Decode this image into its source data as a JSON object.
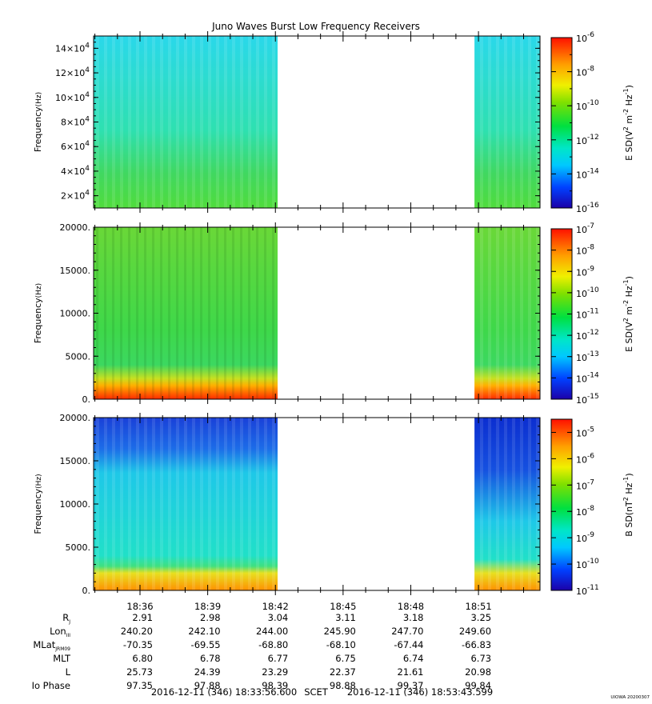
{
  "title": "Juno Waves Burst Low Frequency Receivers",
  "time_ticks": [
    "18:36",
    "18:39",
    "18:42",
    "18:45",
    "18:48",
    "18:51"
  ],
  "chart_data": [
    {
      "type": "heatmap",
      "panel": "top",
      "ylabel": "Frequency (Hz)",
      "yticks": [
        "14×10^4",
        "12×10^4",
        "10×10^4",
        "8×10^4",
        "6×10^4",
        "4×10^4",
        "2×10^4"
      ],
      "yticks_display": [
        {
          "m": "14",
          "e": "4"
        },
        {
          "m": "12",
          "e": "4"
        },
        {
          "m": "10",
          "e": "4"
        },
        {
          "m": "8",
          "e": "4"
        },
        {
          "m": "6",
          "e": "4"
        },
        {
          "m": "4",
          "e": "4"
        },
        {
          "m": "2",
          "e": "4"
        }
      ],
      "ylim": [
        10000,
        150000
      ],
      "colorbar_label": "E SD (V^2 m^-2 Hz^-1)",
      "colorbar_label_parts": {
        "pre": "E SD(V",
        "a": "2",
        "mid": " m",
        "b": "-2",
        "mid2": " Hz",
        "c": "-1",
        "post": ")"
      },
      "colorbar_ticks": [
        "-6",
        "-8",
        "-10",
        "-12",
        "-14",
        "-16"
      ],
      "colorbar_range": [
        -16,
        -6
      ],
      "data_gaps": [
        [
          "18:42",
          "18:51"
        ]
      ]
    },
    {
      "type": "heatmap",
      "panel": "middle",
      "ylabel": "Frequency (Hz)",
      "yticks": [
        "20000.",
        "15000.",
        "10000.",
        "5000.",
        "0."
      ],
      "ylim": [
        0,
        20000
      ],
      "colorbar_label": "E SD (V^2 m^-2 Hz^-1)",
      "colorbar_label_parts": {
        "pre": "E SD(V",
        "a": "2",
        "mid": " m",
        "b": "-2",
        "mid2": " Hz",
        "c": "-1",
        "post": ")"
      },
      "colorbar_ticks": [
        "-7",
        "-8",
        "-9",
        "-10",
        "-11",
        "-12",
        "-13",
        "-14",
        "-15"
      ],
      "colorbar_range": [
        -15,
        -7
      ],
      "data_gaps": [
        [
          "18:42",
          "18:51"
        ]
      ]
    },
    {
      "type": "heatmap",
      "panel": "bottom",
      "ylabel": "Frequency (Hz)",
      "yticks": [
        "20000.",
        "15000.",
        "10000.",
        "5000.",
        "0."
      ],
      "ylim": [
        0,
        20000
      ],
      "colorbar_label": "B SD (nT^2 Hz^-1)",
      "colorbar_label_parts": {
        "pre": "B SD(nT",
        "a": "2",
        "mid": " Hz",
        "b": "-1",
        "mid2": "",
        "c": "",
        "post": ")"
      },
      "colorbar_ticks": [
        "-5",
        "-6",
        "-7",
        "-8",
        "-9",
        "-10",
        "-11"
      ],
      "colorbar_range": [
        -11,
        -4.5
      ],
      "data_gaps": [
        [
          "18:42",
          "18:51"
        ]
      ]
    }
  ],
  "ephemeris": {
    "labels": [
      {
        "main": "R",
        "sub": "J"
      },
      {
        "main": "Lon",
        "sub": "III"
      },
      {
        "main": "MLat",
        "sub": "JRM09"
      },
      {
        "main": "MLT",
        "sub": ""
      },
      {
        "main": "L",
        "sub": ""
      },
      {
        "main": "Io Phase",
        "sub": ""
      }
    ],
    "rows": [
      [
        "2.91",
        "2.98",
        "3.04",
        "3.11",
        "3.18",
        "3.25"
      ],
      [
        "240.20",
        "242.10",
        "244.00",
        "245.90",
        "247.70",
        "249.60"
      ],
      [
        "-70.35",
        "-69.55",
        "-68.80",
        "-68.10",
        "-67.44",
        "-66.83"
      ],
      [
        "6.80",
        "6.78",
        "6.77",
        "6.75",
        "6.74",
        "6.73"
      ],
      [
        "25.73",
        "24.39",
        "23.29",
        "22.37",
        "21.61",
        "20.98"
      ],
      [
        "97.35",
        "97.88",
        "98.39",
        "98.88",
        "99.37",
        "99.84"
      ]
    ]
  },
  "time_range": {
    "start": "2016-12-11 (346) 18:33:56.600",
    "frame": "SCET",
    "end": "2016-12-11 (346) 18:53:43.599"
  },
  "footer_stamp": "UIOWA 20200307",
  "colors": {
    "bg_cyan": "#21d9e0",
    "green": "#3cd24a",
    "yellow": "#e8e020",
    "red": "#ff2a00",
    "blue": "#1a3cd8",
    "navy": "#0000aa"
  }
}
